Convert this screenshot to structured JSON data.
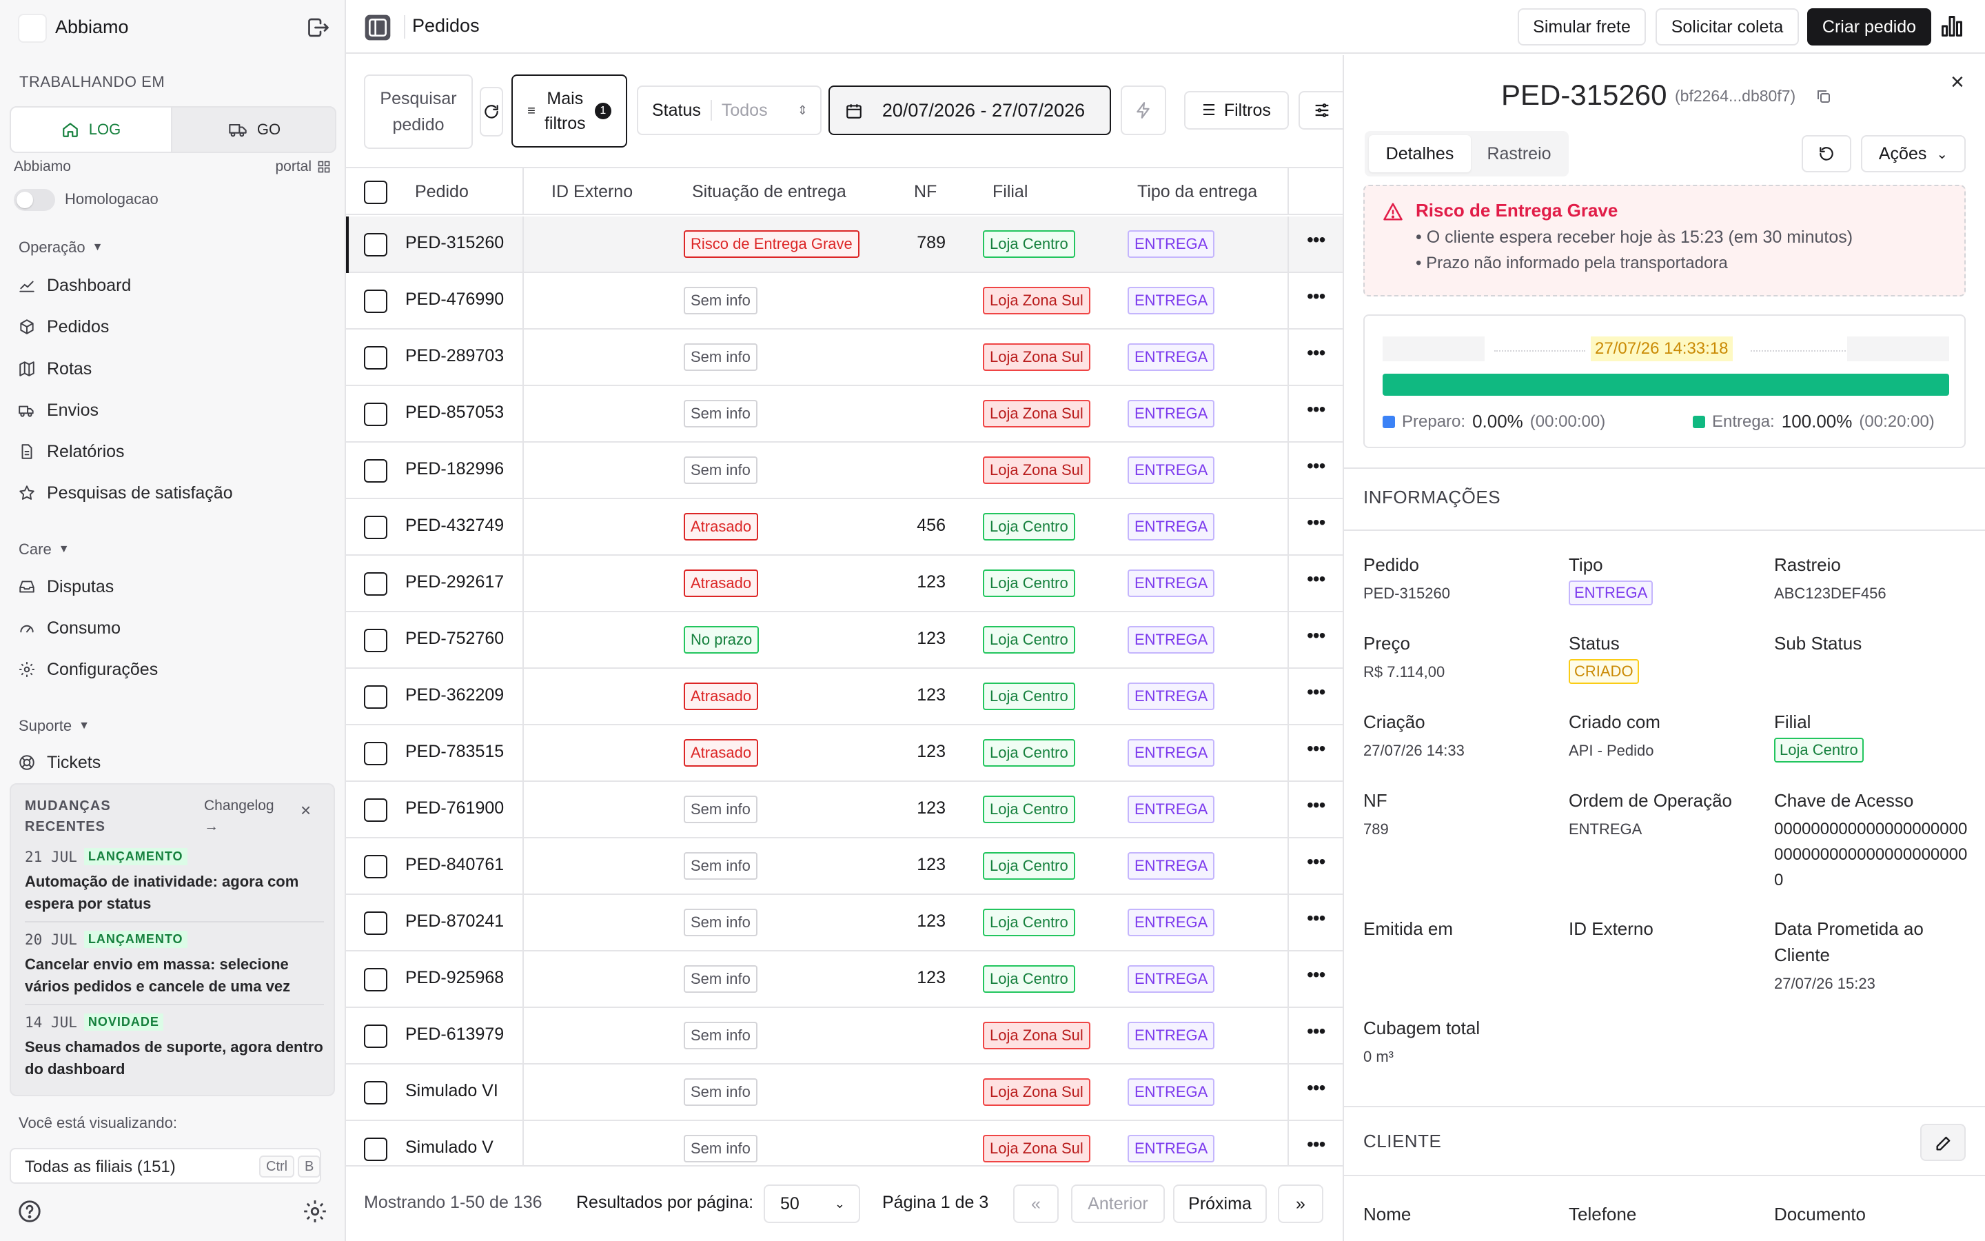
{
  "sidebar": {
    "org_name": "Abbiamo",
    "working_in_label": "TRABALHANDO EM",
    "segments": [
      {
        "label": "LOG",
        "icon": "home-icon",
        "active": true
      },
      {
        "label": "GO",
        "icon": "truck-icon",
        "active": false
      }
    ],
    "org_label": "Abbiamo",
    "portal_label": "portal",
    "environment_label": "Homologacao",
    "groups": [
      {
        "title": "Operação",
        "items": [
          {
            "label": "Dashboard",
            "icon": "chart-line-icon"
          },
          {
            "label": "Pedidos",
            "icon": "package-icon"
          },
          {
            "label": "Rotas",
            "icon": "map-icon"
          },
          {
            "label": "Envios",
            "icon": "truck-delivery-icon"
          },
          {
            "label": "Relatórios",
            "icon": "file-report-icon"
          },
          {
            "label": "Pesquisas de satisfação",
            "icon": "star-icon"
          }
        ]
      },
      {
        "title": "Care",
        "items": [
          {
            "label": "Disputas",
            "icon": "inbox-icon"
          },
          {
            "label": "Consumo",
            "icon": "gauge-icon"
          },
          {
            "label": "Configurações",
            "icon": "gear-icon"
          }
        ]
      },
      {
        "title": "Suporte",
        "items": [
          {
            "label": "Tickets",
            "icon": "lifebuoy-icon"
          }
        ]
      }
    ],
    "changes": {
      "title": "MUDANÇAS RECENTES",
      "changelog_link": "Changelog →",
      "items": [
        {
          "date": "21 JUL",
          "tag": "LANÇAMENTO",
          "text": "Automação de inatividade: agora com espera por status"
        },
        {
          "date": "20 JUL",
          "tag": "LANÇAMENTO",
          "text": "Cancelar envio em massa: selecione vários pedidos e cancele de uma vez"
        },
        {
          "date": "14 JUL",
          "tag": "NOVIDADE",
          "text": "Seus chamados de suporte, agora dentro do dashboard"
        }
      ]
    },
    "viewing_label": "Você está visualizando:",
    "branch_select": "Todas as filiais (151)",
    "shortcut": [
      "Ctrl",
      "B"
    ]
  },
  "topbar": {
    "title": "Pedidos",
    "buttons": {
      "simulate": "Simular frete",
      "collect": "Solicitar coleta",
      "create": "Criar pedido"
    }
  },
  "filters": {
    "search_label": "Pesquisar pedido",
    "more_filters": "Mais filtros",
    "more_filters_count": "1",
    "status_label": "Status",
    "status_value": "Todos",
    "date_range": "20/07/2026 - 27/07/2026",
    "filters_button": "Filtros"
  },
  "table": {
    "columns": [
      "Pedido",
      "ID Externo",
      "Situação de entrega",
      "NF",
      "Filial",
      "Tipo da entrega"
    ],
    "rows": [
      {
        "pedido": "PED-315260",
        "situacao": "Risco de Entrega Grave",
        "sit_color": "red",
        "nf": "789",
        "filial": "Loja Centro",
        "filial_color": "green",
        "tipo": "ENTREGA",
        "selected": true
      },
      {
        "pedido": "PED-476990",
        "situacao": "Sem info",
        "sit_color": "gray",
        "nf": "",
        "filial": "Loja Zona Sul",
        "filial_color": "pink",
        "tipo": "ENTREGA"
      },
      {
        "pedido": "PED-289703",
        "situacao": "Sem info",
        "sit_color": "gray",
        "nf": "",
        "filial": "Loja Zona Sul",
        "filial_color": "pink",
        "tipo": "ENTREGA"
      },
      {
        "pedido": "PED-857053",
        "situacao": "Sem info",
        "sit_color": "gray",
        "nf": "",
        "filial": "Loja Zona Sul",
        "filial_color": "pink",
        "tipo": "ENTREGA"
      },
      {
        "pedido": "PED-182996",
        "situacao": "Sem info",
        "sit_color": "gray",
        "nf": "",
        "filial": "Loja Zona Sul",
        "filial_color": "pink",
        "tipo": "ENTREGA"
      },
      {
        "pedido": "PED-432749",
        "situacao": "Atrasado",
        "sit_color": "red",
        "nf": "456",
        "filial": "Loja Centro",
        "filial_color": "green",
        "tipo": "ENTREGA"
      },
      {
        "pedido": "PED-292617",
        "situacao": "Atrasado",
        "sit_color": "red",
        "nf": "123",
        "filial": "Loja Centro",
        "filial_color": "green",
        "tipo": "ENTREGA"
      },
      {
        "pedido": "PED-752760",
        "situacao": "No prazo",
        "sit_color": "green",
        "nf": "123",
        "filial": "Loja Centro",
        "filial_color": "green",
        "tipo": "ENTREGA"
      },
      {
        "pedido": "PED-362209",
        "situacao": "Atrasado",
        "sit_color": "red",
        "nf": "123",
        "filial": "Loja Centro",
        "filial_color": "green",
        "tipo": "ENTREGA"
      },
      {
        "pedido": "PED-783515",
        "situacao": "Atrasado",
        "sit_color": "red",
        "nf": "123",
        "filial": "Loja Centro",
        "filial_color": "green",
        "tipo": "ENTREGA"
      },
      {
        "pedido": "PED-761900",
        "situacao": "Sem info",
        "sit_color": "gray",
        "nf": "123",
        "filial": "Loja Centro",
        "filial_color": "green",
        "tipo": "ENTREGA"
      },
      {
        "pedido": "PED-840761",
        "situacao": "Sem info",
        "sit_color": "gray",
        "nf": "123",
        "filial": "Loja Centro",
        "filial_color": "green",
        "tipo": "ENTREGA"
      },
      {
        "pedido": "PED-870241",
        "situacao": "Sem info",
        "sit_color": "gray",
        "nf": "123",
        "filial": "Loja Centro",
        "filial_color": "green",
        "tipo": "ENTREGA"
      },
      {
        "pedido": "PED-925968",
        "situacao": "Sem info",
        "sit_color": "gray",
        "nf": "123",
        "filial": "Loja Centro",
        "filial_color": "green",
        "tipo": "ENTREGA"
      },
      {
        "pedido": "PED-613979",
        "situacao": "Sem info",
        "sit_color": "gray",
        "nf": "",
        "filial": "Loja Zona Sul",
        "filial_color": "pink",
        "tipo": "ENTREGA"
      },
      {
        "pedido": "Simulado VI",
        "situacao": "Sem info",
        "sit_color": "gray",
        "nf": "",
        "filial": "Loja Zona Sul",
        "filial_color": "pink",
        "tipo": "ENTREGA"
      },
      {
        "pedido": "Simulado V",
        "situacao": "Sem info",
        "sit_color": "gray",
        "nf": "",
        "filial": "Loja Zona Sul",
        "filial_color": "pink",
        "tipo": "ENTREGA"
      }
    ]
  },
  "pagination": {
    "showing": "Mostrando 1-50 de 136",
    "per_page_label": "Resultados por página:",
    "per_page_value": "50",
    "page_label": "Página 1 de 3",
    "prev": "Anterior",
    "next": "Próxima",
    "first": "«",
    "last": "»"
  },
  "detail": {
    "title": "PED-315260",
    "hash": "(bf2264...db80f7)",
    "tabs": [
      "Detalhes",
      "Rastreio"
    ],
    "actions_label": "Ações",
    "alert": {
      "title": "Risco de Entrega Grave",
      "lines": [
        "• O cliente espera receber hoje às 15:23 (em 30 minutos)",
        "• Prazo não informado pela transportadora"
      ]
    },
    "timeline": {
      "date": "27/07/26 14:33:18",
      "entrega_fraction": 1.0,
      "preparo_label": "Preparo:",
      "preparo_pct": "0.00%",
      "preparo_time": "(00:00:00)",
      "entrega_label": "Entrega:",
      "entrega_pct": "100.00%",
      "entrega_time": "(00:20:00)",
      "preparo_color": "#3b82f6",
      "entrega_color": "#10b981"
    },
    "info_title": "INFORMAÇÕES",
    "fields": {
      "pedido": {
        "label": "Pedido",
        "value": "PED-315260"
      },
      "tipo": {
        "label": "Tipo",
        "value": "ENTREGA"
      },
      "rastreio": {
        "label": "Rastreio",
        "value": "ABC123DEF456"
      },
      "preco": {
        "label": "Preço",
        "value": "R$ 7.114,00"
      },
      "status": {
        "label": "Status",
        "value": "CRIADO"
      },
      "sub_status": {
        "label": "Sub Status",
        "value": ""
      },
      "criacao": {
        "label": "Criação",
        "value": "27/07/26 14:33"
      },
      "criado_com": {
        "label": "Criado com",
        "value": "API - Pedido"
      },
      "filial": {
        "label": "Filial",
        "value": "Loja Centro"
      },
      "nf": {
        "label": "NF",
        "value": "789"
      },
      "ordem": {
        "label": "Ordem de Operação",
        "value": "ENTREGA"
      },
      "chave": {
        "label": "Chave de Acesso",
        "value": "0000000000000000000000000000000000000000000"
      },
      "emitida": {
        "label": "Emitida em",
        "value": ""
      },
      "id_externo": {
        "label": "ID Externo",
        "value": ""
      },
      "data_prometida": {
        "label": "Data Prometida ao Cliente",
        "value": "27/07/26 15:23"
      },
      "cubagem": {
        "label": "Cubagem total",
        "value": "0 m³"
      }
    },
    "client_title": "CLIENTE",
    "client_fields": {
      "nome": "Nome",
      "telefone": "Telefone",
      "documento": "Documento"
    }
  }
}
